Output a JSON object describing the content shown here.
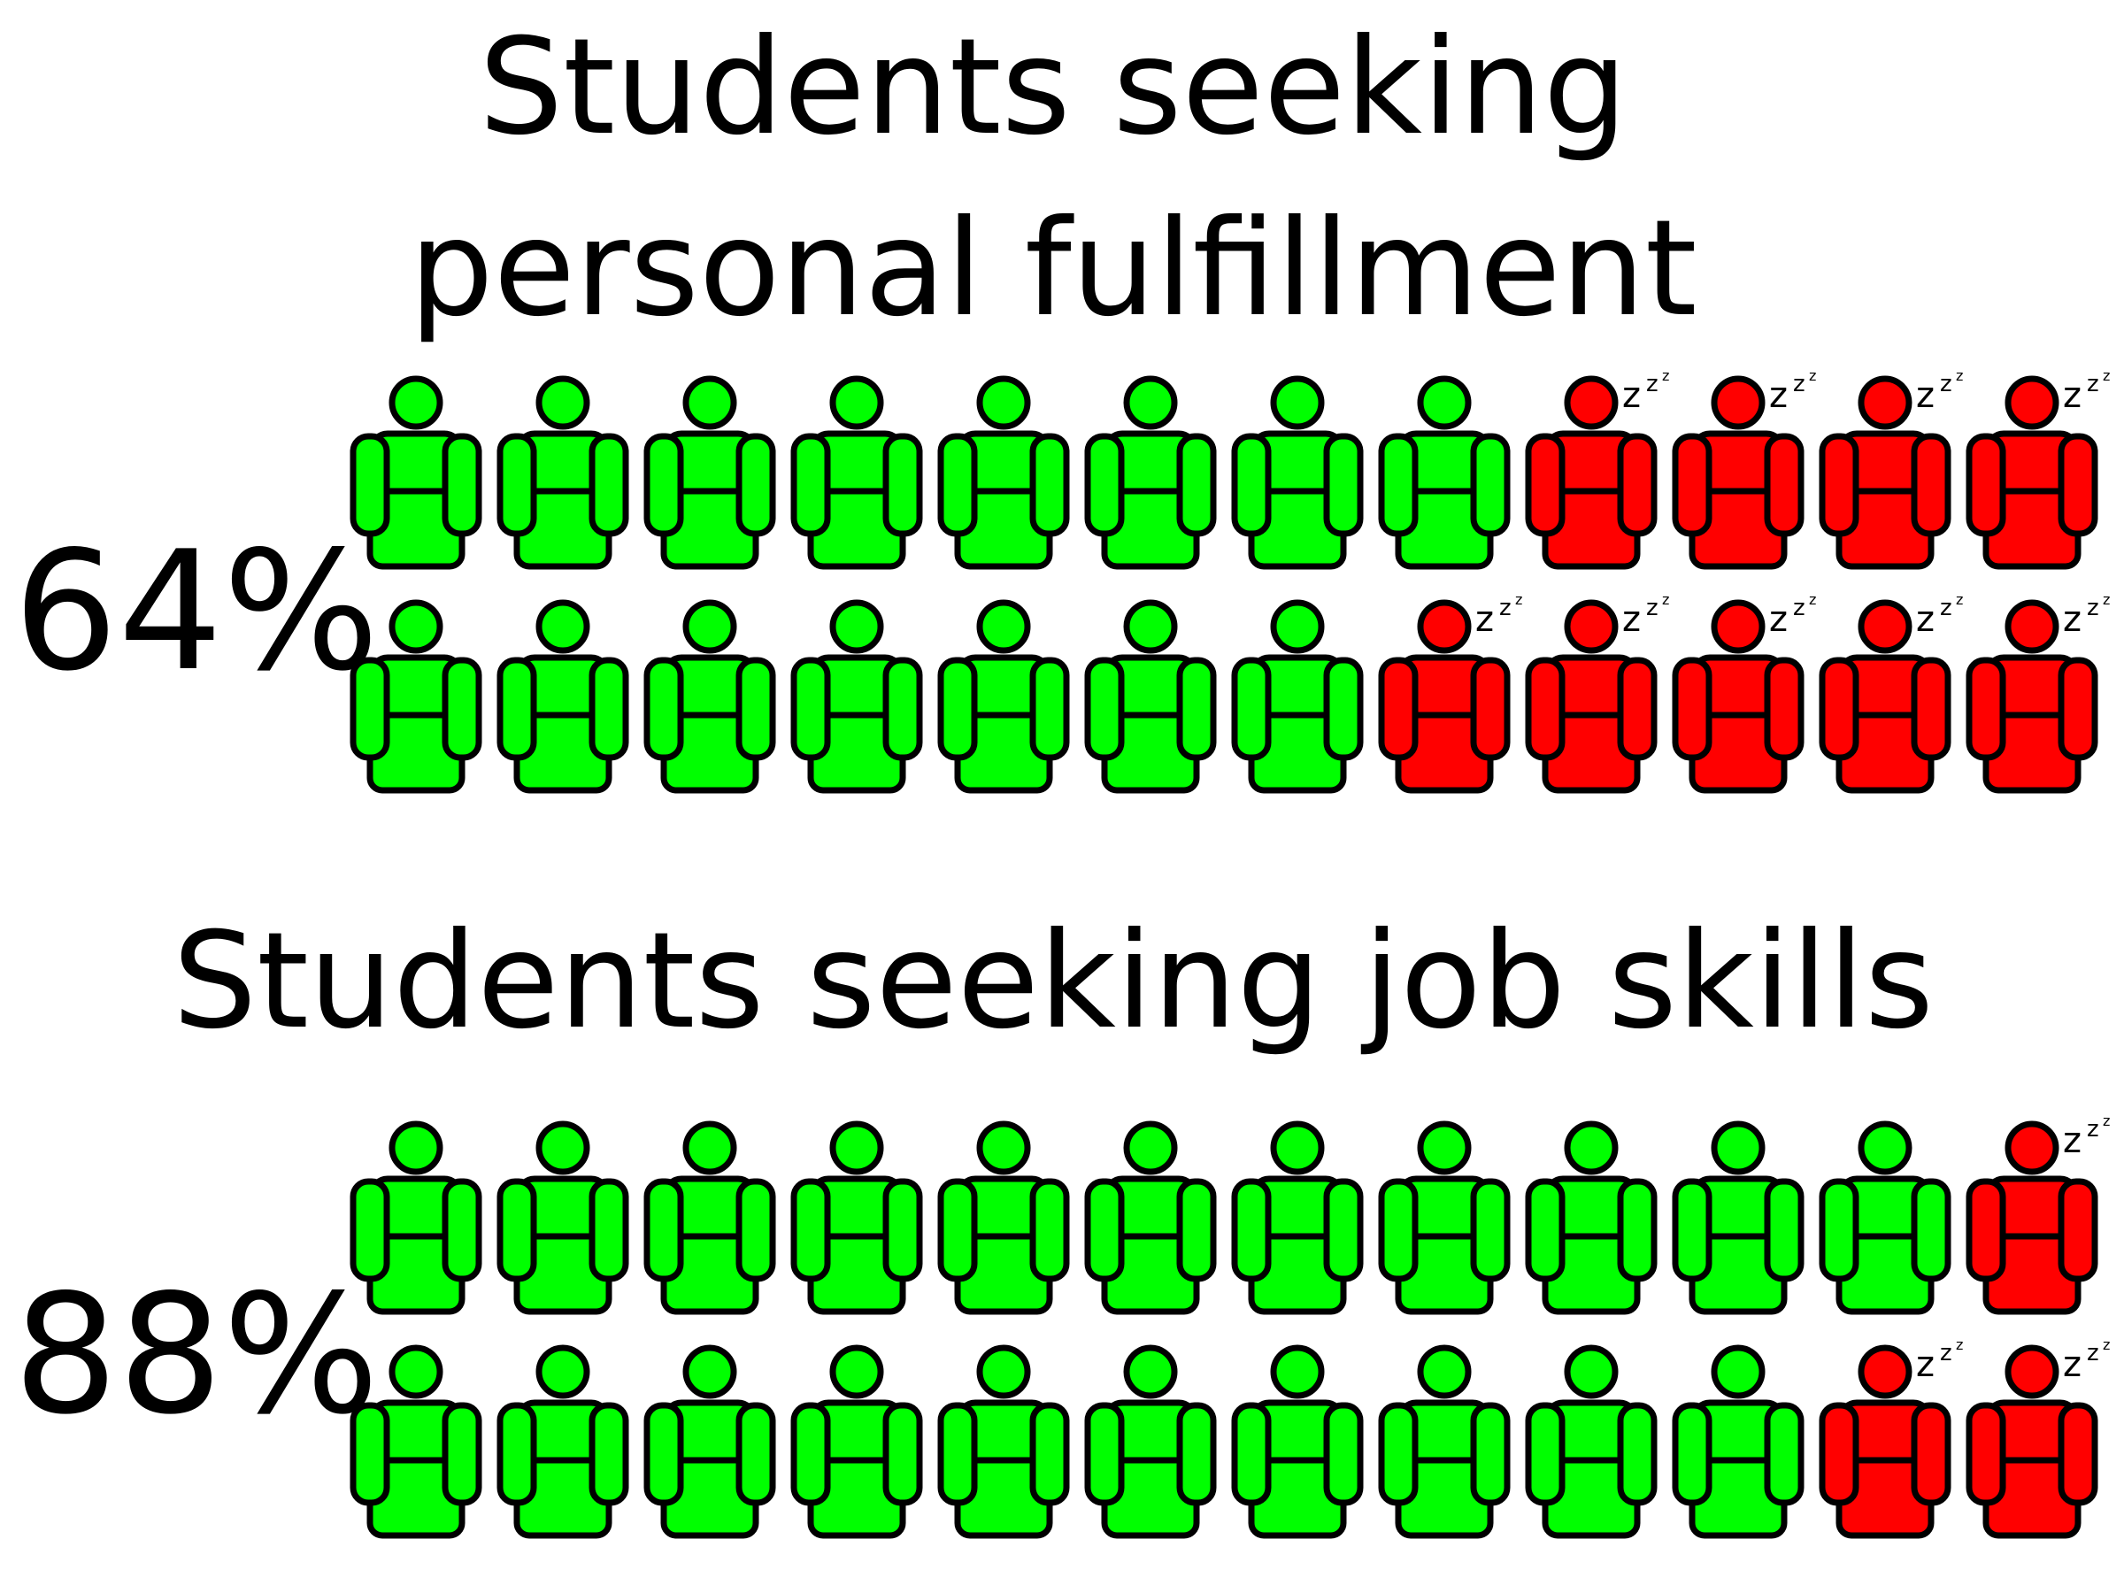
{
  "colors": {
    "seeking": "#00ff00",
    "not_seeking": "#ff0000",
    "outline": "#000000",
    "background": "#ffffff"
  },
  "icons": {
    "person": "person-icon",
    "sleeping": "zzz-icon"
  },
  "chart_data": [
    {
      "type": "pictograph",
      "title_lines": [
        "Students seeking",
        "personal fulfillment"
      ],
      "value_label": "64%",
      "value_percent": 64,
      "icons_total": 24,
      "icons_per_row": 12,
      "rows": [
        {
          "green": 8,
          "red": 4
        },
        {
          "green": 7,
          "red": 5
        }
      ]
    },
    {
      "type": "pictograph",
      "title_lines": [
        "Students seeking job skills"
      ],
      "value_label": "88%",
      "value_percent": 88,
      "icons_total": 24,
      "icons_per_row": 12,
      "rows": [
        {
          "green": 11,
          "red": 1
        },
        {
          "green": 10,
          "red": 2
        }
      ]
    }
  ]
}
